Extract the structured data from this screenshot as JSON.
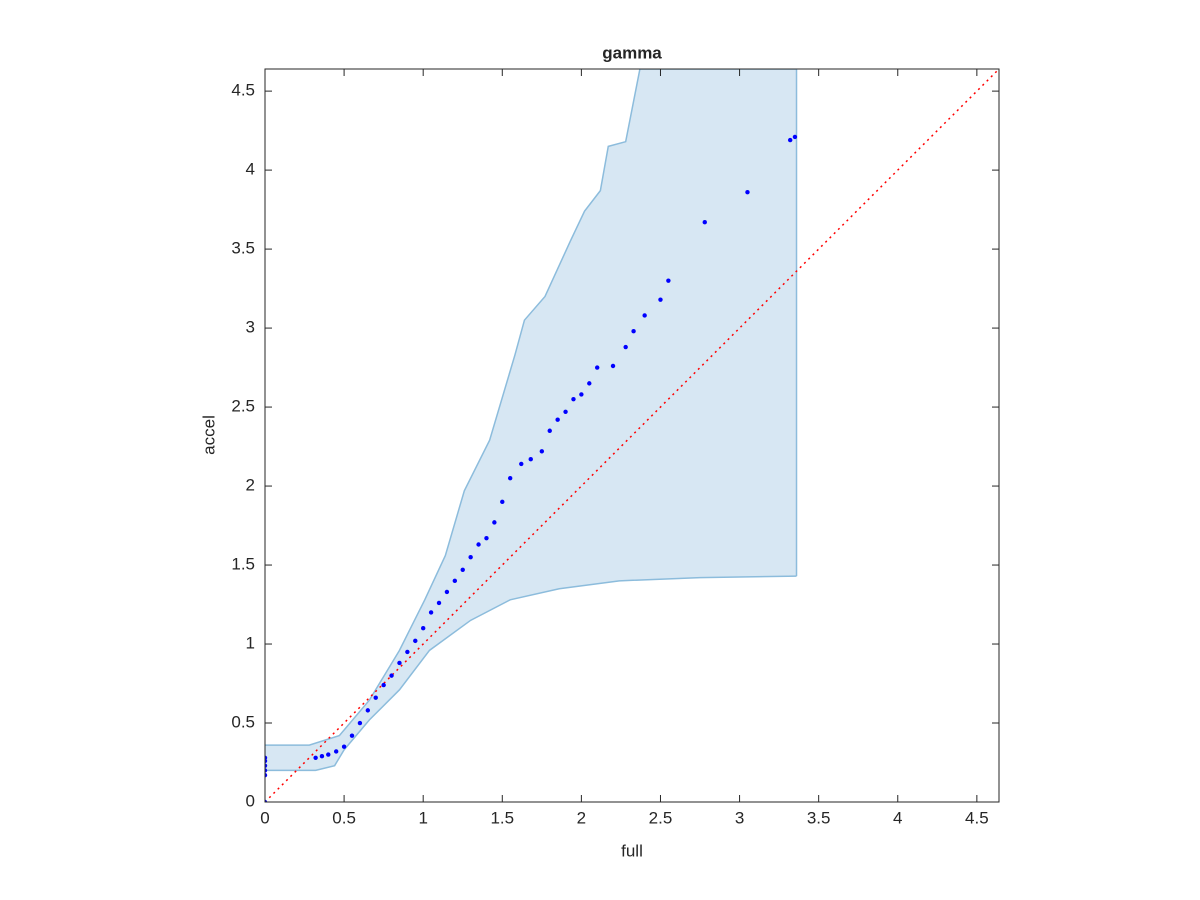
{
  "chart_data": {
    "type": "scatter",
    "title": "gamma",
    "x_label": "full",
    "y_label": "accel",
    "xlim": [
      0,
      4.64
    ],
    "ylim": [
      0,
      4.64
    ],
    "xticks": [
      0,
      0.5,
      1,
      1.5,
      2,
      2.5,
      3,
      3.5,
      4,
      4.5
    ],
    "yticks": [
      0,
      0.5,
      1,
      1.5,
      2,
      2.5,
      3,
      3.5,
      4,
      4.5
    ],
    "x": [
      0,
      0,
      0,
      0,
      0,
      0,
      0.32,
      0.36,
      0.4,
      0.45,
      0.5,
      0.55,
      0.6,
      0.65,
      0.7,
      0.75,
      0.8,
      0.85,
      0.9,
      0.95,
      1.0,
      1.05,
      1.1,
      1.15,
      1.2,
      1.25,
      1.3,
      1.35,
      1.4,
      1.45,
      1.5,
      1.55,
      1.62,
      1.68,
      1.75,
      1.8,
      1.85,
      1.9,
      1.95,
      2.0,
      2.05,
      2.1,
      2.2,
      2.28,
      2.33,
      2.4,
      2.5,
      2.55,
      2.78,
      3.05,
      3.32,
      3.35
    ],
    "values": [
      0,
      0.17,
      0.2,
      0.23,
      0.26,
      0.28,
      0.28,
      0.29,
      0.3,
      0.32,
      0.35,
      0.42,
      0.5,
      0.58,
      0.66,
      0.74,
      0.8,
      0.88,
      0.95,
      1.02,
      1.1,
      1.2,
      1.26,
      1.33,
      1.4,
      1.47,
      1.55,
      1.63,
      1.67,
      1.77,
      1.9,
      2.05,
      2.14,
      2.17,
      2.22,
      2.35,
      2.42,
      2.47,
      2.55,
      2.58,
      2.65,
      2.75,
      2.76,
      2.88,
      2.98,
      3.08,
      3.18,
      3.3,
      3.67,
      3.86,
      4.19,
      4.21
    ],
    "color": "#0000ff",
    "band": {
      "color": "#d7e7f3",
      "edge_color": "#8cbcdc",
      "upper": {
        "x": [
          0,
          0.28,
          0.47,
          0.66,
          0.85,
          1.01,
          1.14,
          1.26,
          1.42,
          1.58,
          1.64,
          1.77,
          1.93,
          2.02,
          2.12,
          2.17,
          2.28,
          2.37,
          3.36
        ],
        "y": [
          0.36,
          0.36,
          0.42,
          0.645,
          0.96,
          1.28,
          1.56,
          1.97,
          2.29,
          2.83,
          3.05,
          3.2,
          3.55,
          3.74,
          3.87,
          4.15,
          4.18,
          4.64,
          4.64
        ]
      },
      "lower": {
        "x": [
          0,
          0.32,
          0.44,
          0.5,
          0.66,
          0.85,
          1.04,
          1.3,
          1.55,
          1.86,
          2.24,
          2.75,
          3.36
        ],
        "y": [
          0.2,
          0.2,
          0.23,
          0.33,
          0.52,
          0.71,
          0.96,
          1.15,
          1.28,
          1.35,
          1.4,
          1.42,
          1.43
        ]
      }
    },
    "reference_line": {
      "x": [
        0,
        4.64
      ],
      "y": [
        0,
        4.64
      ],
      "color": "#ff0000"
    }
  }
}
